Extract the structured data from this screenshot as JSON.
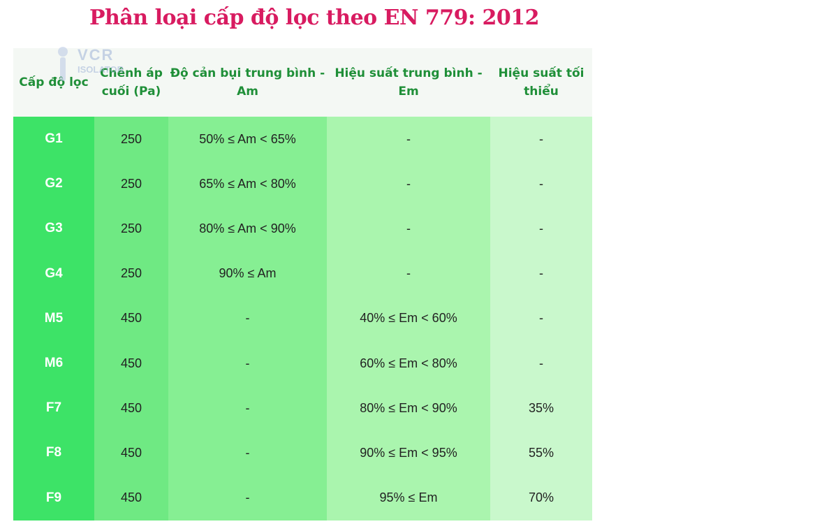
{
  "title": "Phân loại cấp độ lọc theo EN 779: 2012",
  "watermark": {
    "text": "VCR",
    "subtext": "ISOLATOR"
  },
  "header": {
    "col0": "Cấp độ lọc",
    "col1": "Chênh áp cuối (Pa)",
    "col2": "Độ cản bụi trung bình - Am",
    "col3": "Hiệu suất trung bình - Em",
    "col4": "Hiệu suất tối thiểu"
  },
  "rows": [
    [
      "G1",
      "250",
      "50% ≤ Am < 65%",
      "-",
      "-"
    ],
    [
      "G2",
      "250",
      "65% ≤ Am < 80%",
      "-",
      "-"
    ],
    [
      "G3",
      "250",
      "80% ≤ Am < 90%",
      "-",
      "-"
    ],
    [
      "G4",
      "250",
      "90% ≤ Am",
      "-",
      "-"
    ],
    [
      "M5",
      "450",
      "-",
      "40% ≤ Em < 60%",
      "-"
    ],
    [
      "M6",
      "450",
      "-",
      "60% ≤ Em < 80%",
      "-"
    ],
    [
      "F7",
      "450",
      "-",
      "80% ≤ Em < 90%",
      "35%"
    ],
    [
      "F8",
      "450",
      "-",
      "90% ≤ Em < 95%",
      "55%"
    ],
    [
      "F9",
      "450",
      "-",
      "95% ≤ Em",
      "70%"
    ]
  ],
  "colors": {
    "title": "#d81b60",
    "header_text": "#1f8f38",
    "col0": "#3de367",
    "col1": "#6fe983",
    "col2": "#86ef93",
    "col3": "#aaf5ae",
    "col4": "#c9f8cc"
  }
}
